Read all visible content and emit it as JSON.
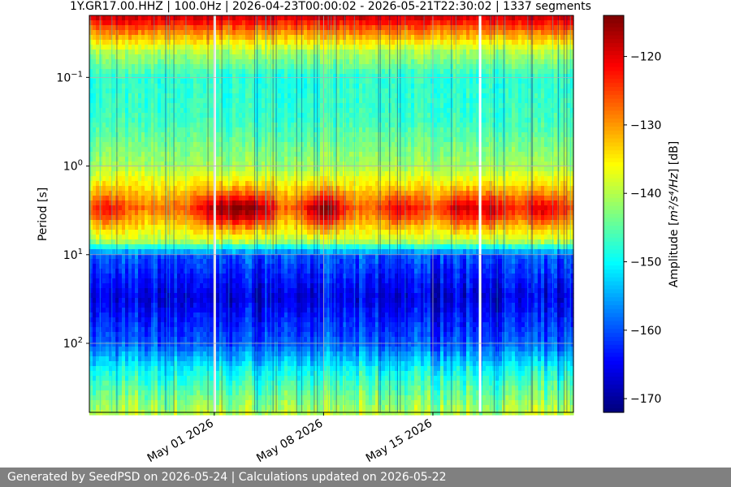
{
  "chart_data": {
    "type": "heatmap",
    "title": "1Y.GR17.00.HHZ | 100.0Hz | 2026-04-23T00:00:02 - 2026-05-21T22:30:02 | 1337 segments",
    "ylabel": "Period [s]",
    "y_scale": "log",
    "y_inverted": true,
    "y_range_s": [
      0.02,
      600
    ],
    "y_ticks": [
      {
        "value": 0.1,
        "base": "10",
        "exp": "−1"
      },
      {
        "value": 1,
        "base": "10",
        "exp": "0"
      },
      {
        "value": 10,
        "base": "10",
        "exp": "1"
      },
      {
        "value": 100,
        "base": "10",
        "exp": "2"
      }
    ],
    "x_range": [
      "2026-04-23",
      "2026-05-24"
    ],
    "x_ticks": [
      {
        "date": "2026-05-01",
        "label": "May 01 2026"
      },
      {
        "date": "2026-05-08",
        "label": "May 08 2026"
      },
      {
        "date": "2026-05-15",
        "label": "May 15 2026"
      }
    ],
    "grid": true,
    "colormap": "jet",
    "colorbar": {
      "label_prefix": "Amplitude [",
      "label_units": "m²/s⁴/Hz",
      "label_suffix": "] [dB]",
      "range_db": [
        -172,
        -114
      ],
      "ticks": [
        "-120",
        "-130",
        "-140",
        "-150",
        "-160",
        "-170"
      ]
    },
    "amplitude_profile_db": [
      {
        "period_s": 0.02,
        "db": -118
      },
      {
        "period_s": 0.03,
        "db": -128
      },
      {
        "period_s": 0.05,
        "db": -140
      },
      {
        "period_s": 0.1,
        "db": -148
      },
      {
        "period_s": 0.3,
        "db": -147
      },
      {
        "period_s": 1,
        "db": -141
      },
      {
        "period_s": 3,
        "db": -128
      },
      {
        "period_s": 7,
        "db": -140
      },
      {
        "period_s": 10,
        "db": -160
      },
      {
        "period_s": 30,
        "db": -167
      },
      {
        "period_s": 100,
        "db": -160
      },
      {
        "period_s": 200,
        "db": -150
      },
      {
        "period_s": 600,
        "db": -140
      }
    ],
    "microseism_peaks": [
      {
        "center": "2026-04-24",
        "width_days": 1.2,
        "strength_db": 6
      },
      {
        "center": "2026-05-02",
        "width_days": 2.0,
        "strength_db": 14
      },
      {
        "center": "2026-05-04",
        "width_days": 1.0,
        "strength_db": 6
      },
      {
        "center": "2026-05-08",
        "width_days": 1.4,
        "strength_db": 13
      },
      {
        "center": "2026-05-13",
        "width_days": 1.2,
        "strength_db": 8
      },
      {
        "center": "2026-05-17",
        "width_days": 1.6,
        "strength_db": 10
      },
      {
        "center": "2026-05-19",
        "width_days": 1.0,
        "strength_db": 7
      },
      {
        "center": "2026-05-22",
        "width_days": 1.5,
        "strength_db": 8
      }
    ],
    "data_gaps": [
      "2026-05-01",
      "2026-05-18"
    ]
  },
  "footer": {
    "text": "Generated by SeedPSD on 2026-05-24 | Calculations updated on 2026-05-22"
  }
}
